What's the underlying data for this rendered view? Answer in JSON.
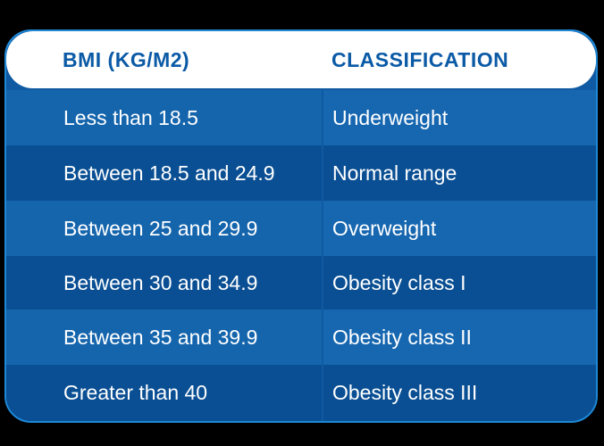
{
  "header": {
    "bmi": "BMI (KG/M2)",
    "classification": "CLASSIFICATION"
  },
  "rows": [
    {
      "bmi": "Less than 18.5",
      "classification": "Underweight"
    },
    {
      "bmi": "Between 18.5 and 24.9",
      "classification": "Normal range"
    },
    {
      "bmi": "Between 25 and 29.9",
      "classification": "Overweight"
    },
    {
      "bmi": "Between 30 and 34.9",
      "classification": "Obesity class I"
    },
    {
      "bmi": "Between 35 and 39.9",
      "classification": "Obesity class II"
    },
    {
      "bmi": "Greater than 40",
      "classification": "Obesity class III"
    }
  ],
  "colors": {
    "header_text": "#0b5aa6",
    "row_light": "#1565ad",
    "row_dark": "#0a4f93",
    "border": "#1e88d6"
  }
}
